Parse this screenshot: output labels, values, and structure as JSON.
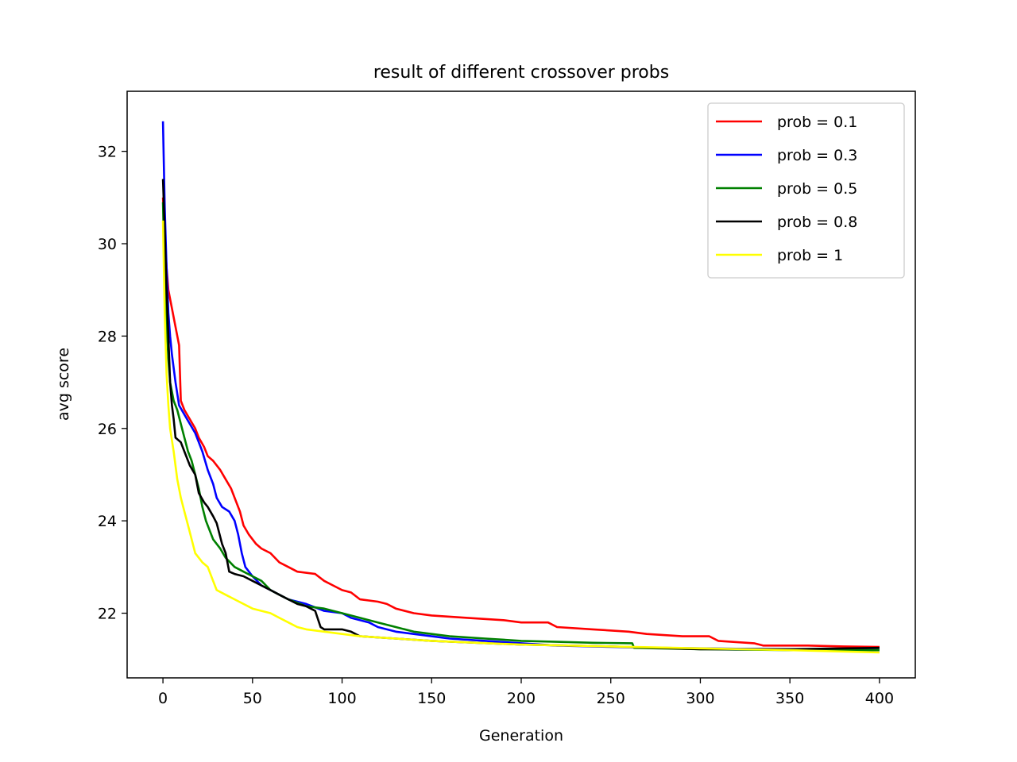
{
  "chart_data": {
    "type": "line",
    "title": "result of different crossover probs",
    "xlabel": "Generation",
    "ylabel": "avg score",
    "xlim": [
      -20,
      420
    ],
    "ylim": [
      20.6,
      33.3
    ],
    "xticks": [
      0,
      50,
      100,
      150,
      200,
      250,
      300,
      350,
      400
    ],
    "yticks": [
      22,
      24,
      26,
      28,
      30,
      32
    ],
    "grid": false,
    "legend_position": "top-right",
    "series": [
      {
        "name": "prob = 0.1",
        "color": "#ff0000",
        "points": [
          [
            0,
            31.0
          ],
          [
            1,
            30.2
          ],
          [
            2,
            29.5
          ],
          [
            3,
            29.0
          ],
          [
            5,
            28.6
          ],
          [
            7,
            28.2
          ],
          [
            9,
            27.8
          ],
          [
            10,
            26.6
          ],
          [
            12,
            26.4
          ],
          [
            15,
            26.2
          ],
          [
            18,
            26.0
          ],
          [
            20,
            25.8
          ],
          [
            23,
            25.6
          ],
          [
            25,
            25.4
          ],
          [
            28,
            25.3
          ],
          [
            32,
            25.1
          ],
          [
            35,
            24.9
          ],
          [
            38,
            24.7
          ],
          [
            40,
            24.5
          ],
          [
            43,
            24.2
          ],
          [
            45,
            23.9
          ],
          [
            48,
            23.7
          ],
          [
            52,
            23.5
          ],
          [
            55,
            23.4
          ],
          [
            60,
            23.3
          ],
          [
            65,
            23.1
          ],
          [
            70,
            23.0
          ],
          [
            75,
            22.9
          ],
          [
            85,
            22.85
          ],
          [
            90,
            22.7
          ],
          [
            95,
            22.6
          ],
          [
            100,
            22.5
          ],
          [
            105,
            22.45
          ],
          [
            110,
            22.3
          ],
          [
            120,
            22.25
          ],
          [
            125,
            22.2
          ],
          [
            130,
            22.1
          ],
          [
            140,
            22.0
          ],
          [
            150,
            21.95
          ],
          [
            170,
            21.9
          ],
          [
            190,
            21.85
          ],
          [
            200,
            21.8
          ],
          [
            215,
            21.8
          ],
          [
            220,
            21.7
          ],
          [
            240,
            21.65
          ],
          [
            260,
            21.6
          ],
          [
            270,
            21.55
          ],
          [
            290,
            21.5
          ],
          [
            305,
            21.5
          ],
          [
            310,
            21.4
          ],
          [
            330,
            21.35
          ],
          [
            335,
            21.3
          ],
          [
            360,
            21.3
          ],
          [
            380,
            21.28
          ],
          [
            400,
            21.27
          ]
        ]
      },
      {
        "name": "prob = 0.3",
        "color": "#0000ff",
        "points": [
          [
            0,
            32.65
          ],
          [
            1,
            30.8
          ],
          [
            2,
            29.5
          ],
          [
            3,
            28.5
          ],
          [
            4,
            28.0
          ],
          [
            5,
            27.6
          ],
          [
            7,
            27.0
          ],
          [
            9,
            26.5
          ],
          [
            12,
            26.3
          ],
          [
            15,
            26.1
          ],
          [
            18,
            25.9
          ],
          [
            20,
            25.7
          ],
          [
            22,
            25.5
          ],
          [
            25,
            25.1
          ],
          [
            28,
            24.8
          ],
          [
            30,
            24.5
          ],
          [
            33,
            24.3
          ],
          [
            37,
            24.2
          ],
          [
            40,
            24.0
          ],
          [
            42,
            23.7
          ],
          [
            44,
            23.3
          ],
          [
            46,
            23.0
          ],
          [
            50,
            22.8
          ],
          [
            55,
            22.6
          ],
          [
            60,
            22.5
          ],
          [
            70,
            22.3
          ],
          [
            80,
            22.2
          ],
          [
            90,
            22.05
          ],
          [
            100,
            22.0
          ],
          [
            105,
            21.9
          ],
          [
            115,
            21.8
          ],
          [
            120,
            21.7
          ],
          [
            130,
            21.6
          ],
          [
            140,
            21.55
          ],
          [
            150,
            21.5
          ],
          [
            160,
            21.45
          ],
          [
            180,
            21.4
          ],
          [
            200,
            21.35
          ],
          [
            220,
            21.3
          ],
          [
            250,
            21.27
          ],
          [
            280,
            21.25
          ],
          [
            320,
            21.23
          ],
          [
            360,
            21.22
          ],
          [
            400,
            21.2
          ]
        ]
      },
      {
        "name": "prob = 0.5",
        "color": "#008000",
        "points": [
          [
            0,
            30.9
          ],
          [
            1,
            29.2
          ],
          [
            2,
            28.3
          ],
          [
            3,
            27.5
          ],
          [
            4,
            27.0
          ],
          [
            6,
            26.6
          ],
          [
            8,
            26.4
          ],
          [
            10,
            26.1
          ],
          [
            12,
            25.8
          ],
          [
            14,
            25.5
          ],
          [
            16,
            25.3
          ],
          [
            18,
            25.0
          ],
          [
            20,
            24.7
          ],
          [
            22,
            24.3
          ],
          [
            24,
            24.0
          ],
          [
            26,
            23.8
          ],
          [
            28,
            23.6
          ],
          [
            32,
            23.4
          ],
          [
            35,
            23.2
          ],
          [
            40,
            23.0
          ],
          [
            45,
            22.9
          ],
          [
            50,
            22.8
          ],
          [
            55,
            22.7
          ],
          [
            60,
            22.5
          ],
          [
            65,
            22.4
          ],
          [
            70,
            22.3
          ],
          [
            80,
            22.15
          ],
          [
            90,
            22.1
          ],
          [
            100,
            22.0
          ],
          [
            110,
            21.9
          ],
          [
            120,
            21.8
          ],
          [
            125,
            21.75
          ],
          [
            130,
            21.7
          ],
          [
            140,
            21.6
          ],
          [
            160,
            21.5
          ],
          [
            180,
            21.45
          ],
          [
            200,
            21.4
          ],
          [
            220,
            21.38
          ],
          [
            240,
            21.36
          ],
          [
            262,
            21.35
          ],
          [
            263,
            21.25
          ],
          [
            300,
            21.22
          ],
          [
            350,
            21.2
          ],
          [
            400,
            21.2
          ]
        ]
      },
      {
        "name": "prob = 0.8",
        "color": "#000000",
        "points": [
          [
            0,
            31.4
          ],
          [
            1,
            30.3
          ],
          [
            2,
            29.0
          ],
          [
            3,
            28.0
          ],
          [
            4,
            27.0
          ],
          [
            5,
            26.5
          ],
          [
            6,
            26.2
          ],
          [
            7,
            25.8
          ],
          [
            10,
            25.7
          ],
          [
            12,
            25.5
          ],
          [
            15,
            25.2
          ],
          [
            18,
            25.0
          ],
          [
            20,
            24.6
          ],
          [
            23,
            24.4
          ],
          [
            25,
            24.3
          ],
          [
            28,
            24.1
          ],
          [
            30,
            23.95
          ],
          [
            33,
            23.5
          ],
          [
            35,
            23.3
          ],
          [
            37,
            22.9
          ],
          [
            40,
            22.85
          ],
          [
            45,
            22.8
          ],
          [
            50,
            22.7
          ],
          [
            55,
            22.6
          ],
          [
            60,
            22.5
          ],
          [
            65,
            22.4
          ],
          [
            70,
            22.3
          ],
          [
            75,
            22.2
          ],
          [
            80,
            22.15
          ],
          [
            85,
            22.05
          ],
          [
            88,
            21.7
          ],
          [
            90,
            21.65
          ],
          [
            100,
            21.65
          ],
          [
            105,
            21.6
          ],
          [
            110,
            21.5
          ],
          [
            130,
            21.45
          ],
          [
            150,
            21.4
          ],
          [
            200,
            21.32
          ],
          [
            250,
            21.28
          ],
          [
            300,
            21.22
          ],
          [
            350,
            21.22
          ],
          [
            400,
            21.25
          ]
        ]
      },
      {
        "name": "prob = 1",
        "color": "#ffff00",
        "points": [
          [
            0,
            30.5
          ],
          [
            1,
            28.5
          ],
          [
            2,
            27.2
          ],
          [
            3,
            26.5
          ],
          [
            4,
            26.0
          ],
          [
            6,
            25.5
          ],
          [
            8,
            24.9
          ],
          [
            10,
            24.5
          ],
          [
            12,
            24.2
          ],
          [
            14,
            23.9
          ],
          [
            16,
            23.6
          ],
          [
            18,
            23.3
          ],
          [
            20,
            23.2
          ],
          [
            22,
            23.1
          ],
          [
            25,
            23.0
          ],
          [
            28,
            22.7
          ],
          [
            30,
            22.5
          ],
          [
            35,
            22.4
          ],
          [
            40,
            22.3
          ],
          [
            45,
            22.2
          ],
          [
            50,
            22.1
          ],
          [
            55,
            22.05
          ],
          [
            60,
            22.0
          ],
          [
            65,
            21.9
          ],
          [
            70,
            21.8
          ],
          [
            75,
            21.7
          ],
          [
            80,
            21.65
          ],
          [
            90,
            21.6
          ],
          [
            100,
            21.55
          ],
          [
            110,
            21.5
          ],
          [
            130,
            21.45
          ],
          [
            150,
            21.4
          ],
          [
            200,
            21.32
          ],
          [
            250,
            21.28
          ],
          [
            300,
            21.24
          ],
          [
            350,
            21.2
          ],
          [
            400,
            21.15
          ]
        ]
      }
    ]
  }
}
